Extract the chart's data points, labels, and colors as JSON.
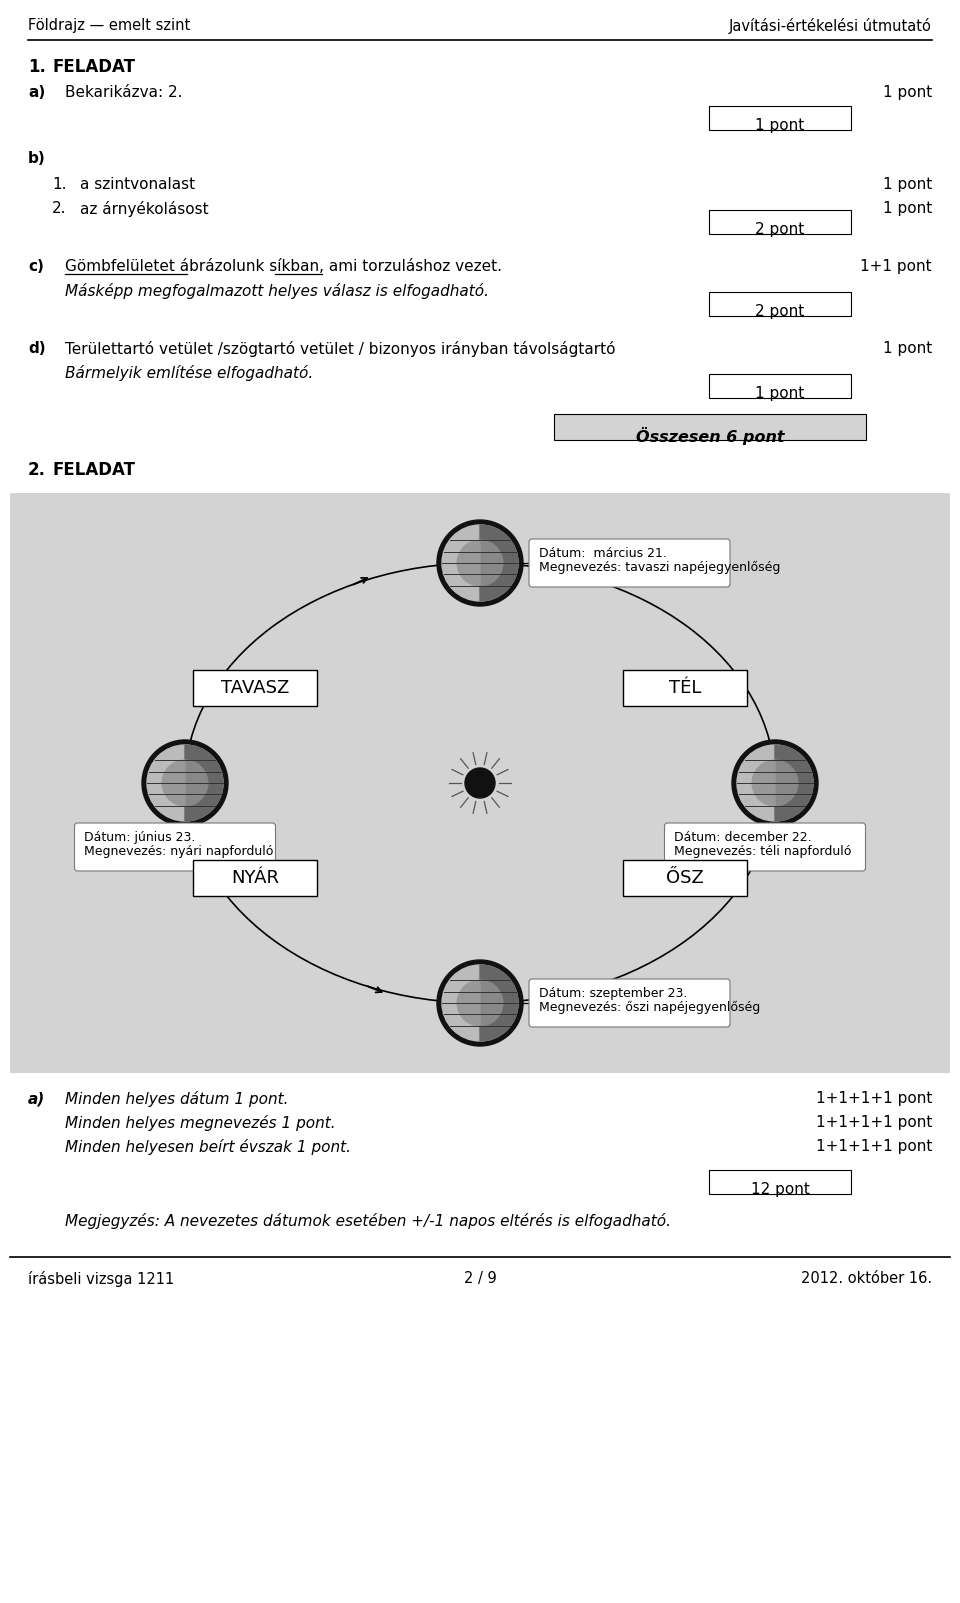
{
  "page_bg": "#ffffff",
  "diagram_bg": "#d3d3d3",
  "header_left": "Földrajz — emelt szint",
  "header_right": "Javítási-értékelési útmutató",
  "page_footer_left": "írásbeli vizsga 1211",
  "page_footer_center": "2 / 9",
  "page_footer_right": "2012. október 16."
}
